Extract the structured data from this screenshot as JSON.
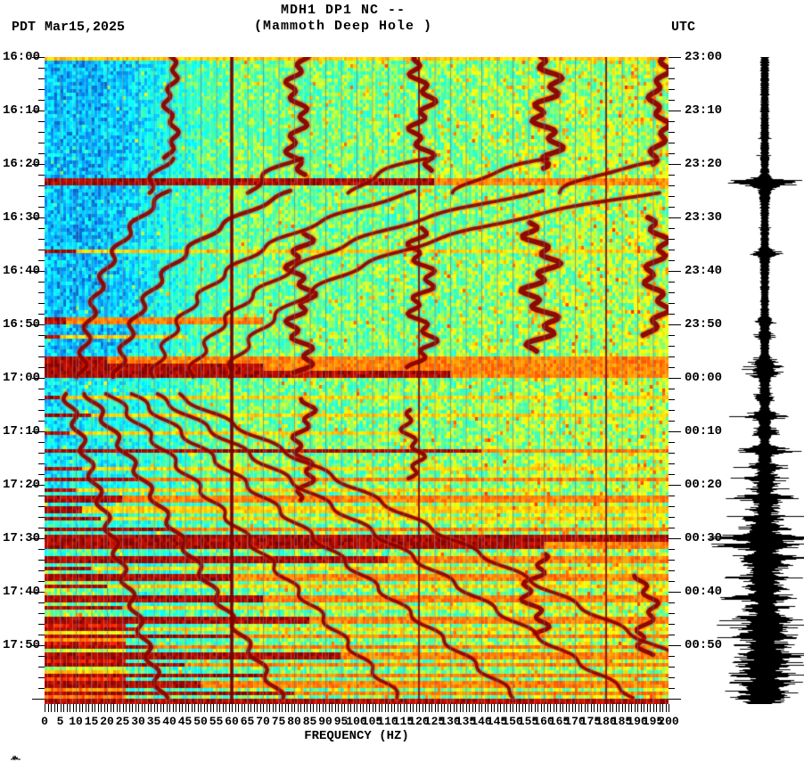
{
  "header": {
    "title1": "MDH1 DP1 NC --",
    "title2": "(Mammoth Deep Hole )",
    "tz_left": "PDT",
    "date": "Mar15,2025",
    "tz_right": "UTC"
  },
  "chart_data": {
    "type": "heatmap",
    "subtype": "seismic-spectrogram-with-helicorder-trace",
    "title": "MDH1 DP1 NC --",
    "subtitle": "(Mammoth Deep Hole )",
    "xlabel": "FREQUENCY (HZ)",
    "x_range": [
      0,
      200
    ],
    "x_major_step": 5,
    "x_minor_step": 1,
    "x_tick_labels": [
      "0",
      "5",
      "10",
      "15",
      "20",
      "25",
      "30",
      "35",
      "40",
      "45",
      "50",
      "55",
      "60",
      "65",
      "70",
      "75",
      "80",
      "85",
      "90",
      "95",
      "100",
      "105",
      "110",
      "115",
      "120",
      "125",
      "130",
      "135",
      "140",
      "145",
      "150",
      "155",
      "160",
      "165",
      "170",
      "175",
      "180",
      "185",
      "190",
      "195",
      "200"
    ],
    "left_time_axis": {
      "timezone": "PDT",
      "date": "Mar15,2025",
      "start": "16:00",
      "end": "18:01",
      "label_step_min": 10,
      "minor_step_min": 2,
      "labels": [
        "16:00",
        "16:10",
        "16:20",
        "16:30",
        "16:40",
        "16:50",
        "17:00",
        "17:10",
        "17:20",
        "17:30",
        "17:40",
        "17:50"
      ]
    },
    "right_time_axis": {
      "timezone": "UTC",
      "labels": [
        "23:00",
        "23:10",
        "23:20",
        "23:30",
        "23:40",
        "23:50",
        "00:00",
        "00:10",
        "00:20",
        "00:30",
        "00:40",
        "00:50"
      ]
    },
    "grid_hz_step": 5,
    "power_line_hz": [
      60,
      120,
      180
    ],
    "colormap_stops": [
      [
        0.0,
        "#000083"
      ],
      [
        0.125,
        "#003caa"
      ],
      [
        0.25,
        "#05a0ff"
      ],
      [
        0.375,
        "#05ffff"
      ],
      [
        0.5,
        "#50ff9b"
      ],
      [
        0.625,
        "#ffff00"
      ],
      [
        0.75,
        "#ff9400"
      ],
      [
        0.875,
        "#ff1e00"
      ],
      [
        1.0,
        "#800000"
      ]
    ],
    "tremor_bands": [
      {
        "hz": 40.5,
        "t0": 0,
        "t1": 19,
        "wig": 2.5,
        "lw": 5
      },
      {
        "hz": 81,
        "t0": 0,
        "t1": 22,
        "wig": 4,
        "lw": 5.5
      },
      {
        "hz": 121,
        "t0": 0,
        "t1": 21.5,
        "wig": 4.5,
        "lw": 5.5
      },
      {
        "hz": 161,
        "t0": 0,
        "t1": 21,
        "wig": 5.5,
        "lw": 6
      },
      {
        "hz": 197,
        "t0": 0,
        "t1": 20,
        "wig": 3.5,
        "lw": 6
      },
      {
        "hz": 82,
        "t0": 33,
        "t1": 59,
        "wig": 5,
        "lw": 5.5
      },
      {
        "hz": 121,
        "t0": 32,
        "t1": 58,
        "wig": 5,
        "lw": 5
      },
      {
        "hz": 159,
        "t0": 31,
        "t1": 55,
        "wig": 6.5,
        "lw": 6
      },
      {
        "hz": 196,
        "t0": 30,
        "t1": 52,
        "wig": 4.5,
        "lw": 6
      },
      {
        "hz": 83,
        "t0": 64,
        "t1": 83,
        "wig": 4,
        "lw": 5
      },
      {
        "hz": 118,
        "t0": 66,
        "t1": 79,
        "wig": 4,
        "lw": 4.5
      },
      {
        "hz": 157,
        "t0": 93,
        "t1": 108,
        "wig": 5,
        "lw": 5
      },
      {
        "hz": 193,
        "t0": 97,
        "t1": 112,
        "wig": 4,
        "lw": 5
      }
    ],
    "chirp_fans": [
      {
        "t0": 19,
        "t1": 25.5,
        "f_start": 40.5,
        "f_end": 31,
        "harmonics": 5,
        "tau": 4
      },
      {
        "t0": 25,
        "t1": 60,
        "f_start": 40,
        "f_end": 9,
        "harmonics": 5,
        "tau": 14
      },
      {
        "t0": 63,
        "t1": 120,
        "f_start": 7,
        "f_end": 38,
        "harmonics": 6,
        "tau": -1
      }
    ],
    "events": [
      {
        "t": 0.4,
        "amp": 0.7,
        "fdark": 0,
        "fmax": 200,
        "dur": 0.6
      },
      {
        "t": 23.3,
        "amp": 1.0,
        "fdark": 125,
        "fmax": 200,
        "dur": 0.8
      },
      {
        "t": 36.5,
        "amp": 0.55,
        "fdark": 10,
        "fmax": 200,
        "dur": 0.5
      },
      {
        "t": 49.3,
        "amp": 0.85,
        "fdark": 7,
        "fmax": 70,
        "dur": 1.0
      },
      {
        "t": 52.0,
        "amp": 0.6,
        "fdark": 5,
        "fmax": 45,
        "dur": 0.6
      },
      {
        "t": 56.6,
        "amp": 0.8,
        "fdark": 20,
        "fmax": 200,
        "dur": 0.7
      },
      {
        "t": 57.8,
        "amp": 1.0,
        "fdark": 70,
        "fmax": 200,
        "dur": 1.0
      },
      {
        "t": 59.1,
        "amp": 0.95,
        "fdark": 130,
        "fmax": 200,
        "dur": 0.8
      },
      {
        "t": 63.5,
        "amp": 0.5,
        "fdark": 5,
        "fmax": 200,
        "dur": 0.4
      },
      {
        "t": 67.0,
        "amp": 0.7,
        "fdark": 15,
        "fmax": 200,
        "dur": 0.6
      },
      {
        "t": 70.0,
        "amp": 0.5,
        "fdark": 8,
        "fmax": 120,
        "dur": 0.4
      },
      {
        "t": 73.5,
        "amp": 1.0,
        "fdark": 140,
        "fmax": 200,
        "dur": 0.8
      },
      {
        "t": 76.5,
        "amp": 0.65,
        "fdark": 12,
        "fmax": 200,
        "dur": 0.5
      },
      {
        "t": 78.6,
        "amp": 0.8,
        "fdark": 30,
        "fmax": 200,
        "dur": 0.6
      },
      {
        "t": 80.6,
        "amp": 0.6,
        "fdark": 10,
        "fmax": 160,
        "dur": 0.5
      },
      {
        "t": 82.4,
        "amp": 0.8,
        "fdark": 25,
        "fmax": 200,
        "dur": 0.6
      },
      {
        "t": 84.4,
        "amp": 0.65,
        "fdark": 12,
        "fmax": 200,
        "dur": 0.5
      },
      {
        "t": 86.1,
        "amp": 0.7,
        "fdark": 18,
        "fmax": 200,
        "dur": 0.5
      },
      {
        "t": 88.0,
        "amp": 0.85,
        "fdark": 40,
        "fmax": 200,
        "dur": 0.6
      },
      {
        "t": 89.8,
        "amp": 1.0,
        "fdark": 200,
        "fmax": 200,
        "dur": 1.1
      },
      {
        "t": 91.3,
        "amp": 1.0,
        "fdark": 160,
        "fmax": 200,
        "dur": 0.9
      },
      {
        "t": 93.6,
        "amp": 0.95,
        "fdark": 110,
        "fmax": 200,
        "dur": 0.8
      },
      {
        "t": 95.2,
        "amp": 0.7,
        "fdark": 15,
        "fmax": 200,
        "dur": 0.5
      },
      {
        "t": 97.1,
        "amp": 0.85,
        "fdark": 60,
        "fmax": 200,
        "dur": 0.6
      },
      {
        "t": 99.0,
        "amp": 0.7,
        "fdark": 20,
        "fmax": 200,
        "dur": 0.5
      },
      {
        "t": 101.0,
        "amp": 0.9,
        "fdark": 70,
        "fmax": 200,
        "dur": 0.7
      },
      {
        "t": 103.0,
        "amp": 0.7,
        "fdark": 25,
        "fmax": 180,
        "dur": 0.5
      },
      {
        "t": 105.0,
        "amp": 0.95,
        "fdark": 85,
        "fmax": 200,
        "dur": 0.8
      },
      {
        "t": 106.6,
        "amp": 0.7,
        "fdark": 30,
        "fmax": 200,
        "dur": 0.5
      },
      {
        "t": 108.2,
        "amp": 0.9,
        "fdark": 60,
        "fmax": 200,
        "dur": 0.6
      },
      {
        "t": 110.0,
        "amp": 0.8,
        "fdark": 35,
        "fmax": 200,
        "dur": 0.6
      },
      {
        "t": 111.8,
        "amp": 0.95,
        "fdark": 95,
        "fmax": 200,
        "dur": 0.7
      },
      {
        "t": 113.5,
        "amp": 0.85,
        "fdark": 45,
        "fmax": 200,
        "dur": 0.6
      },
      {
        "t": 115.2,
        "amp": 0.9,
        "fdark": 70,
        "fmax": 200,
        "dur": 0.6
      },
      {
        "t": 117.0,
        "amp": 0.85,
        "fdark": 50,
        "fmax": 200,
        "dur": 0.6
      },
      {
        "t": 118.6,
        "amp": 0.9,
        "fdark": 80,
        "fmax": 200,
        "dur": 0.6
      },
      {
        "t": 120.3,
        "amp": 1.0,
        "fdark": 200,
        "fmax": 200,
        "dur": 0.9
      }
    ],
    "helicorder": {
      "color": "#000000",
      "spikes": [
        {
          "t": 23.3,
          "a": 34
        },
        {
          "t": 36.5,
          "a": 12
        },
        {
          "t": 49.3,
          "a": 6
        },
        {
          "t": 52,
          "a": 5
        },
        {
          "t": 56.6,
          "a": 10
        },
        {
          "t": 57.8,
          "a": 14
        },
        {
          "t": 59.1,
          "a": 12
        },
        {
          "t": 63.5,
          "a": 8
        },
        {
          "t": 67,
          "a": 22
        },
        {
          "t": 70,
          "a": 10
        },
        {
          "t": 73.5,
          "a": 30
        },
        {
          "t": 76.5,
          "a": 16
        },
        {
          "t": 78.6,
          "a": 20
        },
        {
          "t": 80.6,
          "a": 12
        },
        {
          "t": 82.4,
          "a": 24
        },
        {
          "t": 84.4,
          "a": 14
        },
        {
          "t": 86.1,
          "a": 18
        },
        {
          "t": 88,
          "a": 22
        },
        {
          "t": 89.8,
          "a": 46
        },
        {
          "t": 91.3,
          "a": 40
        },
        {
          "t": 93.6,
          "a": 34
        },
        {
          "t": 95.2,
          "a": 20
        },
        {
          "t": 97.1,
          "a": 26
        },
        {
          "t": 99,
          "a": 20
        },
        {
          "t": 101,
          "a": 32
        },
        {
          "t": 103,
          "a": 22
        },
        {
          "t": 105,
          "a": 38
        },
        {
          "t": 106.6,
          "a": 26
        },
        {
          "t": 108.2,
          "a": 34
        },
        {
          "t": 110,
          "a": 30
        },
        {
          "t": 111.8,
          "a": 40
        },
        {
          "t": 113.5,
          "a": 34
        },
        {
          "t": 115.2,
          "a": 30
        },
        {
          "t": 117,
          "a": 28
        },
        {
          "t": 118.6,
          "a": 26
        },
        {
          "t": 120,
          "a": 24
        }
      ]
    }
  },
  "footer": {
    "corner_mark": "micro-seismogram-squiggle"
  }
}
